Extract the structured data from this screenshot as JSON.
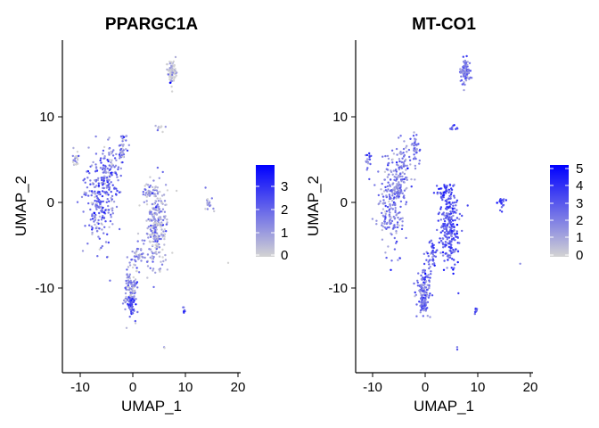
{
  "chart_data": [
    {
      "type": "scatter",
      "title": "PPARGC1A",
      "xlabel": "UMAP_1",
      "ylabel": "UMAP_2",
      "xlim": [
        -13.5,
        20.5
      ],
      "ylim": [
        -19.8,
        19.2
      ],
      "x_ticks": [
        -10,
        0,
        10,
        20
      ],
      "x_tick_labels": [
        "-10",
        "0",
        "10",
        "20"
      ],
      "y_ticks": [
        -10,
        0,
        10
      ],
      "y_tick_labels": [
        "-10",
        "0",
        "10"
      ],
      "legend": {
        "position": "right",
        "min": 0,
        "max": 3.9,
        "ticks": [
          0,
          1,
          2,
          3
        ],
        "tick_labels": [
          "0",
          "1",
          "2",
          "3"
        ],
        "low_color": "#D3D3D3",
        "high_color": "#0000FF"
      },
      "series": [
        {
          "values": [
            {
              "x": -11,
              "y": 5,
              "n": 20,
              "w": 0.6,
              "h": 1.0,
              "v": 0.8
            },
            {
              "x": -6.5,
              "y": 0.5,
              "n": 220,
              "w": 3.0,
              "h": 6.0,
              "v": 1.7
            },
            {
              "x": -4.5,
              "y": 3.5,
              "n": 90,
              "w": 2.2,
              "h": 4.0,
              "v": 1.8
            },
            {
              "x": -2,
              "y": 6.5,
              "n": 40,
              "w": 0.8,
              "h": 2.0,
              "v": 1.5
            },
            {
              "x": 3.5,
              "y": 1.5,
              "n": 40,
              "w": 1.6,
              "h": 1.2,
              "v": 1.0
            },
            {
              "x": 4.5,
              "y": -3,
              "n": 240,
              "w": 2.2,
              "h": 5.0,
              "v": 0.8
            },
            {
              "x": 1,
              "y": -6,
              "n": 40,
              "w": 1.5,
              "h": 2.0,
              "v": 1.1
            },
            {
              "x": -0.5,
              "y": -10,
              "n": 120,
              "w": 1.5,
              "h": 3.0,
              "v": 1.4
            },
            {
              "x": -0.5,
              "y": -12,
              "n": 35,
              "w": 0.8,
              "h": 1.0,
              "v": 2.3
            },
            {
              "x": 7.5,
              "y": 15.5,
              "n": 90,
              "w": 1.0,
              "h": 1.6,
              "v": 0.05
            },
            {
              "x": 7,
              "y": 14.2,
              "n": 2,
              "w": 0.3,
              "h": 0.2,
              "v": 3.5
            },
            {
              "x": 5,
              "y": 9,
              "n": 10,
              "w": 1.2,
              "h": 0.5,
              "v": 0.4
            },
            {
              "x": 14.5,
              "y": 0,
              "n": 18,
              "w": 1.0,
              "h": 1.2,
              "v": 0.7
            },
            {
              "x": 9.5,
              "y": -12.5,
              "n": 8,
              "w": 0.5,
              "h": 0.5,
              "v": 2.5
            },
            {
              "x": 6,
              "y": -17,
              "n": 2,
              "w": 0.2,
              "h": 0.3,
              "v": 1.5
            },
            {
              "x": -5,
              "y": -6.3,
              "n": 2,
              "w": 0.2,
              "h": 0.2,
              "v": 1.5
            },
            {
              "x": 18,
              "y": -7,
              "n": 1,
              "w": 0.1,
              "h": 0.1,
              "v": 0.05
            }
          ]
        }
      ]
    },
    {
      "type": "scatter",
      "title": "MT-CO1",
      "xlabel": "UMAP_1",
      "ylabel": "UMAP_2",
      "xlim": [
        -13.5,
        20.5
      ],
      "ylim": [
        -19.8,
        19.2
      ],
      "x_ticks": [
        -10,
        0,
        10,
        20
      ],
      "x_tick_labels": [
        "-10",
        "0",
        "10",
        "20"
      ],
      "y_ticks": [
        -10,
        0,
        10
      ],
      "y_tick_labels": [
        "-10",
        "0",
        "10"
      ],
      "legend": {
        "position": "right",
        "min": 0,
        "max": 5.1,
        "ticks": [
          0,
          1,
          2,
          3,
          4,
          5
        ],
        "tick_labels": [
          "0",
          "1",
          "2",
          "3",
          "4",
          "5"
        ],
        "low_color": "#D3D3D3",
        "high_color": "#0000FF"
      },
      "series": [
        {
          "values": [
            {
              "x": -11,
              "y": 5,
              "n": 20,
              "w": 0.6,
              "h": 1.0,
              "v": 2.6
            },
            {
              "x": -6.5,
              "y": 0.5,
              "n": 220,
              "w": 3.0,
              "h": 6.0,
              "v": 2.0
            },
            {
              "x": -4.5,
              "y": 3.5,
              "n": 90,
              "w": 2.2,
              "h": 4.0,
              "v": 1.9
            },
            {
              "x": -2,
              "y": 6.5,
              "n": 40,
              "w": 0.8,
              "h": 2.0,
              "v": 2.1
            },
            {
              "x": 3.5,
              "y": 1.5,
              "n": 40,
              "w": 1.6,
              "h": 1.2,
              "v": 3.4
            },
            {
              "x": 4.5,
              "y": -3,
              "n": 240,
              "w": 2.2,
              "h": 5.0,
              "v": 3.0
            },
            {
              "x": 1,
              "y": -6,
              "n": 40,
              "w": 1.5,
              "h": 2.0,
              "v": 2.9
            },
            {
              "x": -0.5,
              "y": -10,
              "n": 120,
              "w": 1.5,
              "h": 3.0,
              "v": 2.6
            },
            {
              "x": -0.5,
              "y": -12,
              "n": 35,
              "w": 0.8,
              "h": 1.0,
              "v": 2.6
            },
            {
              "x": 7.5,
              "y": 15.5,
              "n": 90,
              "w": 1.0,
              "h": 1.6,
              "v": 2.1
            },
            {
              "x": 7,
              "y": 14.2,
              "n": 2,
              "w": 0.3,
              "h": 0.2,
              "v": 3.0
            },
            {
              "x": 5,
              "y": 9,
              "n": 10,
              "w": 1.2,
              "h": 0.5,
              "v": 3.2
            },
            {
              "x": 14.5,
              "y": 0,
              "n": 18,
              "w": 1.0,
              "h": 1.2,
              "v": 3.5
            },
            {
              "x": 9.5,
              "y": -12.5,
              "n": 8,
              "w": 0.5,
              "h": 0.5,
              "v": 3.0
            },
            {
              "x": 6,
              "y": -17,
              "n": 2,
              "w": 0.2,
              "h": 0.3,
              "v": 3.2
            },
            {
              "x": -5,
              "y": -6.3,
              "n": 2,
              "w": 0.2,
              "h": 0.2,
              "v": 3.0
            },
            {
              "x": 18,
              "y": -7,
              "n": 1,
              "w": 0.1,
              "h": 0.1,
              "v": 2.0
            }
          ]
        }
      ]
    }
  ]
}
